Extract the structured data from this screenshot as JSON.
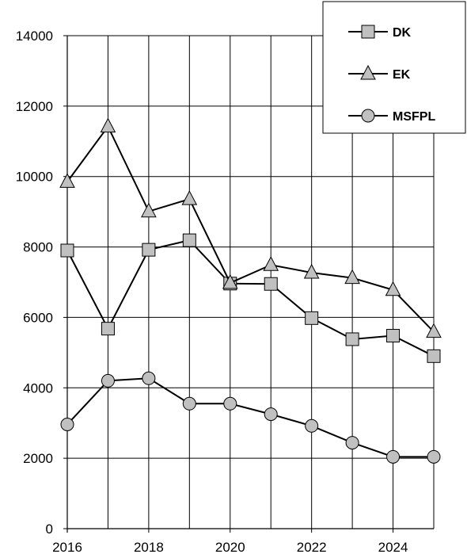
{
  "chart_data": {
    "type": "line",
    "title": "",
    "xlabel": "",
    "ylabel": "",
    "x": [
      2016,
      2017,
      2018,
      2019,
      2020,
      2021,
      2022,
      2023,
      2024,
      2025
    ],
    "xlim": [
      2016,
      2025
    ],
    "ylim": [
      0,
      14000
    ],
    "x_ticks": [
      "2016",
      "2018",
      "2020",
      "2022",
      "2024"
    ],
    "y_ticks": [
      "0",
      "2000",
      "4000",
      "6000",
      "8000",
      "10000",
      "12000",
      "14000"
    ],
    "grid": true,
    "legend_position": "top-right",
    "series": [
      {
        "name": "DK",
        "marker": "square",
        "color": "#c0c0c0",
        "values": [
          7900,
          5680,
          7920,
          8190,
          6960,
          6950,
          5980,
          5380,
          5480,
          4900
        ]
      },
      {
        "name": "EK",
        "marker": "triangle",
        "color": "#c0c0c0",
        "values": [
          9850,
          11420,
          9010,
          9360,
          6980,
          7490,
          7270,
          7120,
          6780,
          5590
        ]
      },
      {
        "name": "MSFPL",
        "marker": "circle",
        "color": "#c0c0c0",
        "values": [
          2960,
          4200,
          4270,
          3550,
          3550,
          3250,
          2920,
          2440,
          2040,
          2040
        ]
      }
    ]
  }
}
